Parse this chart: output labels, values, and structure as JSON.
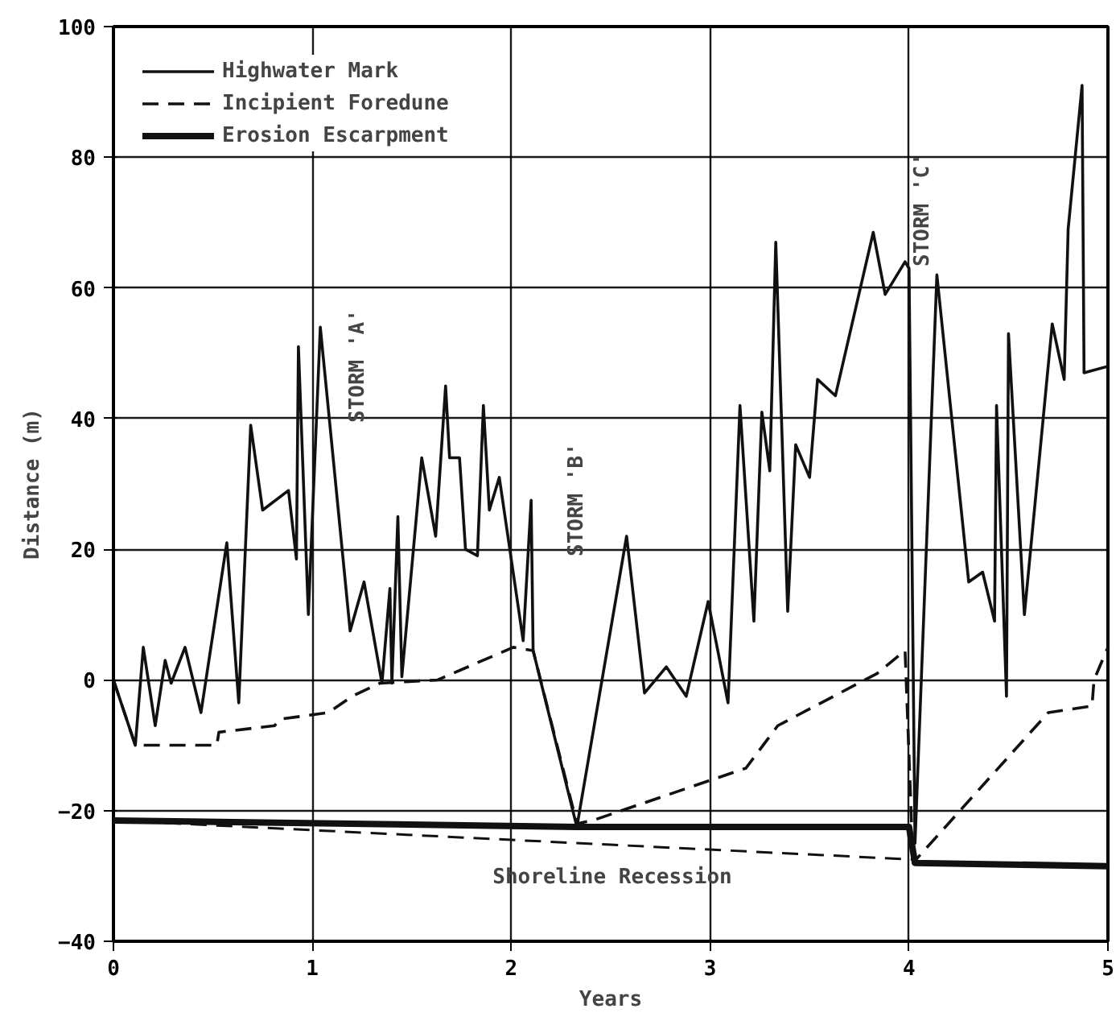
{
  "chart_data": {
    "type": "line",
    "xlabel": "Years",
    "ylabel": "Distance (m)",
    "xlim": [
      0,
      5.0
    ],
    "ylim": [
      -40,
      100
    ],
    "xticks": [
      0,
      1,
      2,
      3,
      4,
      5
    ],
    "yticks": [
      -40,
      -20,
      0,
      20,
      40,
      60,
      80,
      100
    ],
    "grid": true,
    "legend": "top left",
    "marker": "none",
    "series": [
      {
        "name": "Highwater Mark",
        "color": "#111111",
        "line_style": "solid",
        "x": [
          0,
          0.11,
          0.15,
          0.21,
          0.26,
          0.29,
          0.36,
          0.44,
          0.57,
          0.63,
          0.69,
          0.75,
          0.88,
          0.92,
          0.93,
          0.98,
          1.04,
          1.19,
          1.26,
          1.35,
          1.39,
          1.4,
          1.43,
          1.45,
          1.55,
          1.62,
          1.67,
          1.69,
          1.74,
          1.77,
          1.83,
          1.86,
          1.89,
          1.94,
          2.06,
          2.1,
          2.11,
          2.33,
          2.58,
          2.67,
          2.78,
          2.88,
          2.99,
          3.09,
          3.15,
          3.22,
          3.26,
          3.3,
          3.33,
          3.39,
          3.43,
          3.5,
          3.54,
          3.63,
          3.82,
          3.88,
          3.98,
          4.0,
          4.03,
          4.14,
          4.3,
          4.37,
          4.43,
          4.44,
          4.49,
          4.5,
          4.58,
          4.72,
          4.78,
          4.8,
          4.87,
          4.88,
          5.0
        ],
        "values": [
          0,
          -10,
          5,
          -7,
          3,
          -0.5,
          5,
          -5,
          21,
          -3.5,
          39,
          26,
          29,
          18.5,
          51,
          10,
          54,
          7.5,
          15,
          -0.5,
          14,
          -0.5,
          25,
          0.5,
          34,
          22,
          45,
          34,
          34,
          20,
          19,
          42,
          26,
          31,
          6,
          27.5,
          4.5,
          -22.5,
          22,
          -2,
          2,
          -2.5,
          12,
          -3.5,
          42,
          9,
          41,
          32,
          67,
          10.5,
          36,
          31,
          46,
          43.5,
          68.5,
          59,
          64,
          63,
          -25,
          62,
          15,
          16.5,
          9,
          42,
          -2.5,
          53,
          10,
          54.5,
          46,
          69,
          91,
          47,
          48
        ]
      },
      {
        "name": "Incipient Foredune",
        "color": "#111111",
        "line_style": "dashed",
        "x": [
          0,
          0.11,
          0.52,
          0.53,
          0.81,
          0.84,
          1.08,
          1.2,
          1.34,
          1.63,
          2.01,
          2.11,
          2.33,
          2.41,
          3.18,
          3.34,
          3.84,
          3.98,
          4.02,
          4.7,
          4.92,
          4.93,
          5.0
        ],
        "values": [
          0,
          -10,
          -10,
          -8,
          -7,
          -6,
          -5,
          -2.5,
          -0.5,
          0,
          5,
          4.5,
          -22,
          -21.5,
          -13.5,
          -7,
          1,
          4.5,
          -28,
          -5,
          -4,
          0,
          5
        ]
      },
      {
        "name": "Erosion Escarpment",
        "color": "#111111",
        "line_style": "solid",
        "x": [
          0,
          2.33,
          2.34,
          4.0,
          4.03,
          5.0
        ],
        "values": [
          -21.5,
          -22.5,
          -22.5,
          -22.5,
          -28,
          -28.5
        ]
      },
      {
        "color": "#111111",
        "line_style": "dashed",
        "x": [
          0,
          4.03
        ],
        "values": [
          -21.5,
          -27.5
        ]
      }
    ],
    "annotations": [
      "STORM 'A'",
      "STORM 'B'",
      "STORM 'C'",
      "Shoreline Recession"
    ]
  }
}
